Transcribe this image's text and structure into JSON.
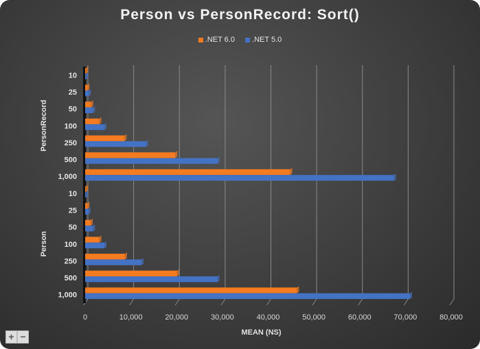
{
  "chart_data": {
    "type": "bar",
    "orientation": "horizontal",
    "title": "Person vs PersonRecord: Sort()",
    "xlabel": "MEAN (NS)",
    "ylabel": "",
    "xlim": [
      0,
      80000
    ],
    "xticks": [
      "0",
      "10,000",
      "20,000",
      "30,000",
      "40,000",
      "50,000",
      "60,000",
      "70,000",
      "80,000"
    ],
    "grid": true,
    "legend_position": "top",
    "groups": [
      {
        "name": "PersonRecord",
        "categories": [
          "10",
          "25",
          "50",
          "100",
          "250",
          "500",
          "1,000"
        ],
        "series": [
          {
            "name": ".NET 6.0",
            "values": [
              200,
              500,
              1300,
              3100,
              8600,
              19700,
              44800
            ]
          },
          {
            "name": ".NET 5.0",
            "values": [
              200,
              800,
              1700,
              4200,
              13300,
              28900,
              67500
            ]
          }
        ]
      },
      {
        "name": "Person",
        "categories": [
          "10",
          "25",
          "50",
          "100",
          "250",
          "500",
          "1,000"
        ],
        "series": [
          {
            "name": ".NET 6.0",
            "values": [
              200,
              500,
              1200,
              3100,
              8700,
              20100,
              46300
            ]
          },
          {
            "name": ".NET 5.0",
            "values": [
              200,
              700,
              1700,
              4200,
              12300,
              28900,
              71000
            ]
          }
        ]
      }
    ],
    "colors": {
      ".NET 6.0": "#f47b20",
      ".NET 5.0": "#4472c4"
    }
  },
  "legend": [
    {
      "label": ".NET 6.0",
      "color": "#f47b20"
    },
    {
      "label": ".NET 5.0",
      "color": "#4472c4"
    }
  ],
  "controls": {
    "zoom_in": "+",
    "zoom_out": "−"
  }
}
